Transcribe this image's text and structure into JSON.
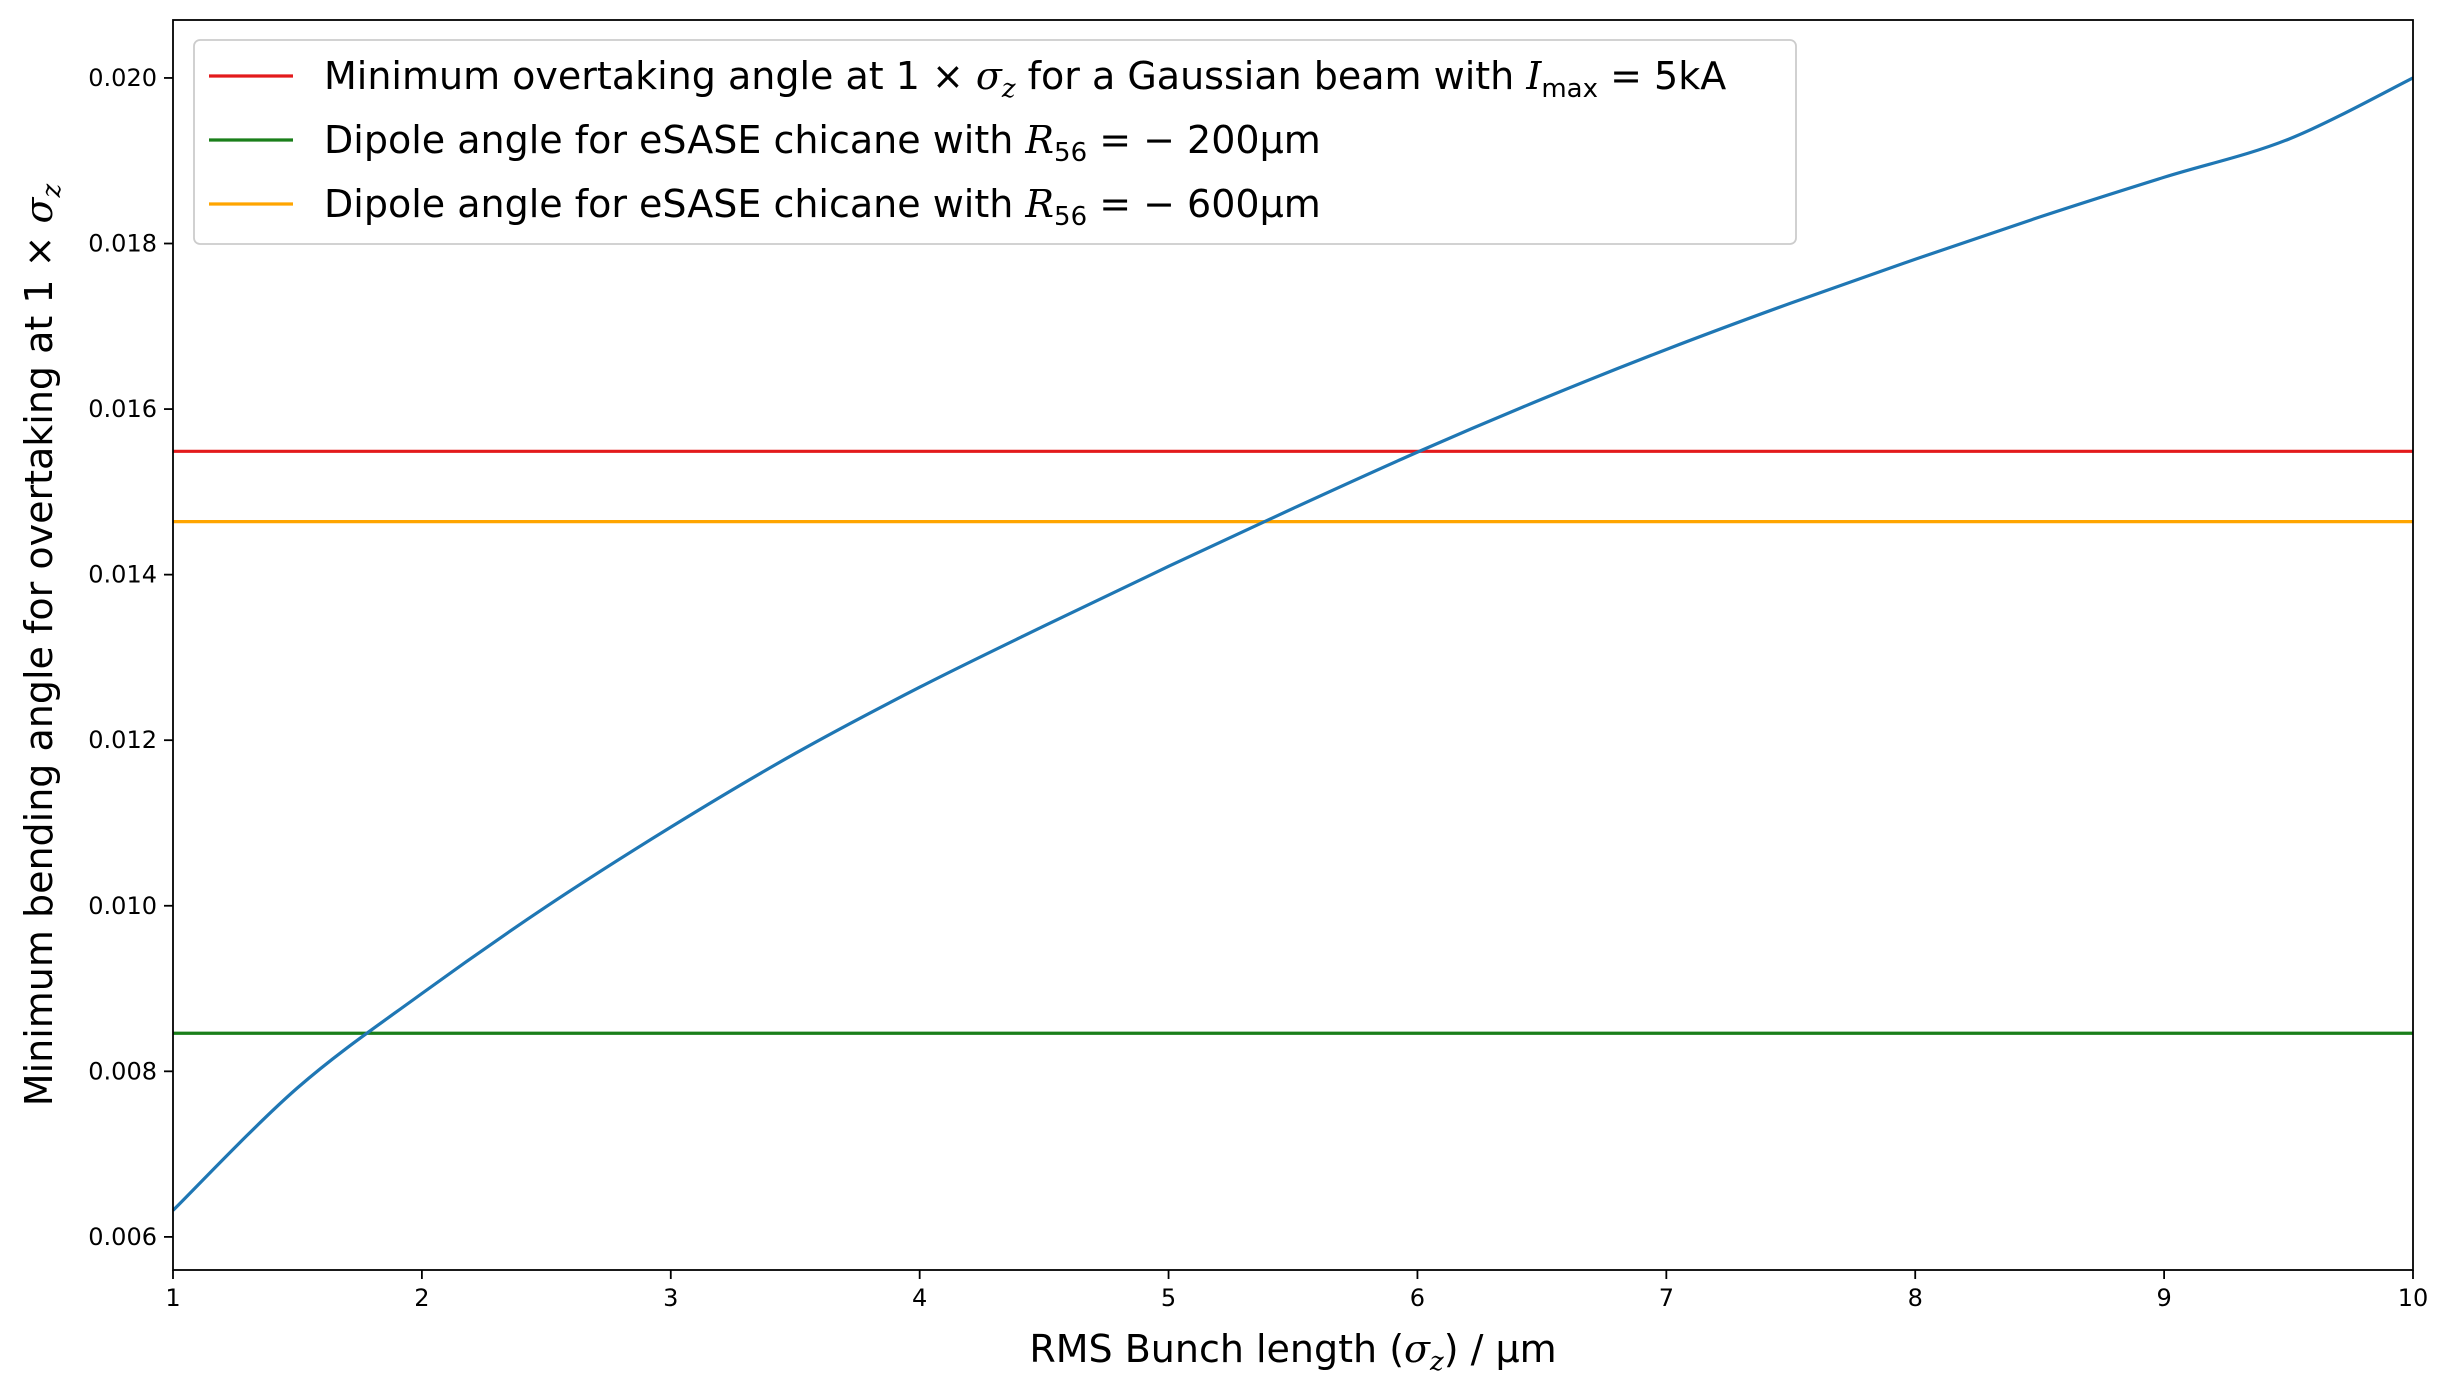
{
  "chart_data": {
    "type": "line",
    "xlabel_parts": [
      "RMS Bunch length (",
      "σ",
      "z",
      ") / μm"
    ],
    "ylabel_parts": [
      "Minimum bending angle for overtaking at 1 × ",
      "σ",
      "z"
    ],
    "xlim": [
      1,
      10
    ],
    "ylim": [
      0.0056,
      0.0207
    ],
    "x_ticks": [
      1,
      2,
      3,
      4,
      5,
      6,
      7,
      8,
      9,
      10
    ],
    "x_tick_labels": [
      "1",
      "2",
      "3",
      "4",
      "5",
      "6",
      "7",
      "8",
      "9",
      "10"
    ],
    "y_ticks": [
      0.006,
      0.008,
      0.01,
      0.012,
      0.014,
      0.016,
      0.018,
      0.02
    ],
    "y_tick_labels": [
      "0.006",
      "0.008",
      "0.010",
      "0.012",
      "0.014",
      "0.016",
      "0.018",
      "0.020"
    ],
    "curve": {
      "color": "#1f77b4",
      "x": [
        1,
        1.5,
        2,
        2.5,
        3,
        3.5,
        4,
        4.5,
        5,
        5.5,
        6,
        6.5,
        7,
        7.5,
        8,
        8.5,
        9,
        9.5,
        10
      ],
      "y": [
        0.00632,
        0.0078,
        0.00894,
        0.00999,
        0.01095,
        0.01184,
        0.01264,
        0.01338,
        0.0141,
        0.0148,
        0.01548,
        0.01612,
        0.01672,
        0.01728,
        0.01781,
        0.01832,
        0.0188,
        0.01926,
        0.02
      ]
    },
    "hlines": [
      {
        "color": "#e31a1c",
        "y": 0.01549
      },
      {
        "color": "#1a7f1a",
        "y": 0.00846
      },
      {
        "color": "#ffa500",
        "y": 0.01464
      }
    ],
    "legend": {
      "placement": "upper-left",
      "entries": [
        {
          "color": "#e31a1c",
          "parts": [
            "Minimum overtaking angle at 1 × ",
            "σ",
            "z",
            " for a Gaussian beam with ",
            "I",
            "max",
            " = 5kA"
          ]
        },
        {
          "color": "#1a7f1a",
          "parts": [
            "Dipole angle for eSASE chicane with ",
            "R",
            "56",
            " = − 200μm"
          ]
        },
        {
          "color": "#ffa500",
          "parts": [
            "Dipole angle for eSASE chicane with ",
            "R",
            "56",
            " = − 600μm"
          ]
        }
      ]
    }
  }
}
